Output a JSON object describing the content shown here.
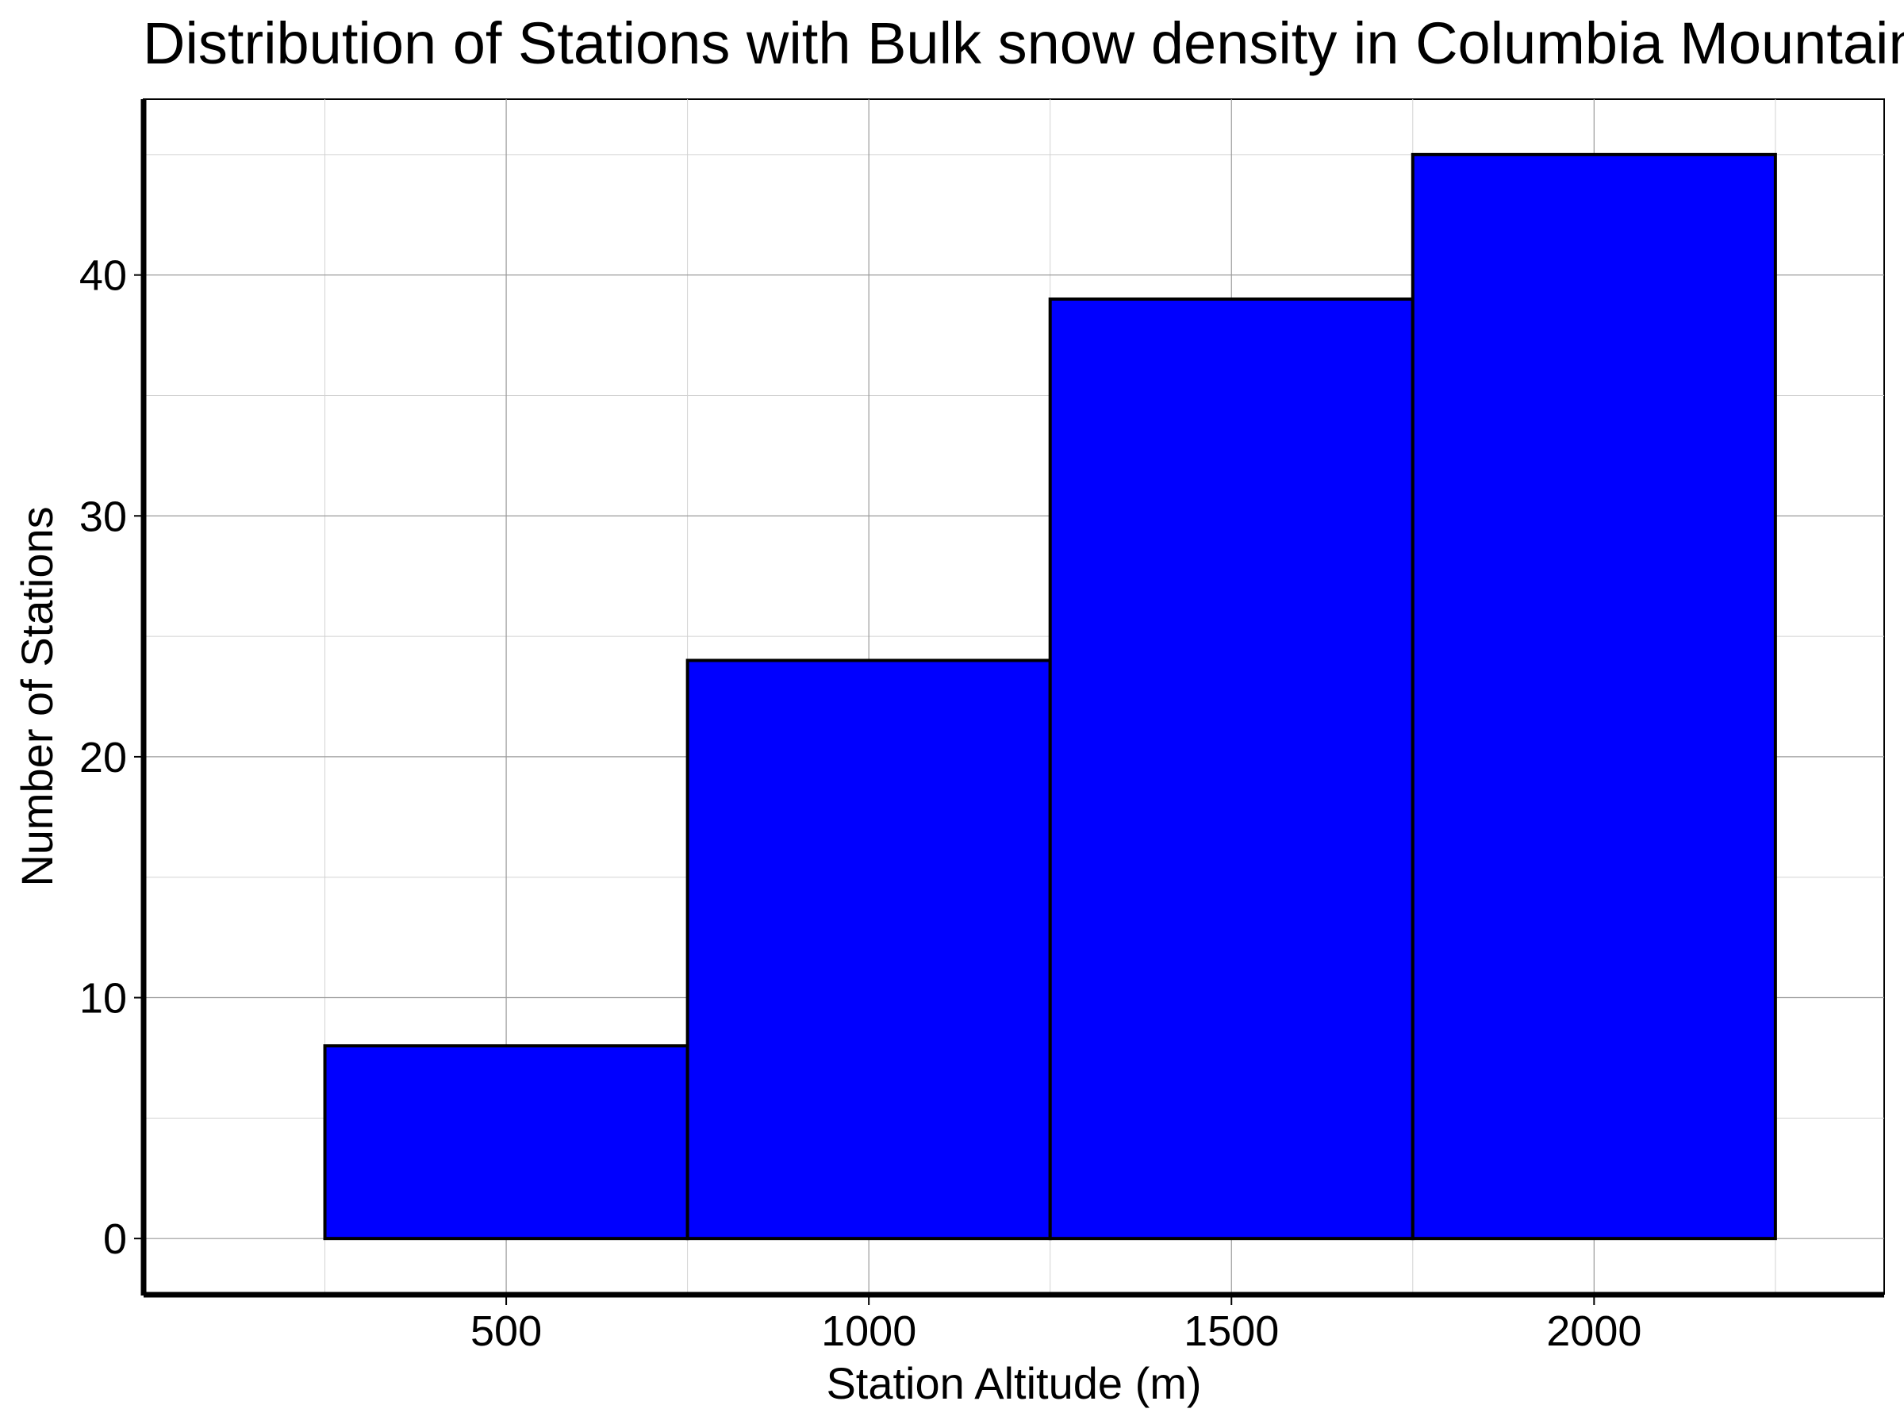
{
  "chart_data": {
    "type": "bar",
    "title": "Distribution of Stations with Bulk snow density in Columbia Mountains",
    "xlabel": "Station Altitude (m)",
    "ylabel": "Number of Stations",
    "bins": [
      {
        "start": 250,
        "end": 750,
        "value": 8
      },
      {
        "start": 750,
        "end": 1250,
        "value": 24
      },
      {
        "start": 1250,
        "end": 1750,
        "value": 39
      },
      {
        "start": 1750,
        "end": 2250,
        "value": 45
      }
    ],
    "xlim": [
      0,
      2400
    ],
    "ylim": [
      -2.3,
      47.3
    ],
    "xticks": [
      500,
      1000,
      1500,
      2000
    ],
    "yticks": [
      0,
      10,
      20,
      30,
      40
    ],
    "x_minor_ticks": [
      250,
      750,
      1250,
      1750,
      2250
    ],
    "y_minor_ticks": [
      5,
      15,
      25,
      35,
      45
    ],
    "grid": true,
    "bar_color": "#0000ff",
    "edge_color": "#000000"
  }
}
